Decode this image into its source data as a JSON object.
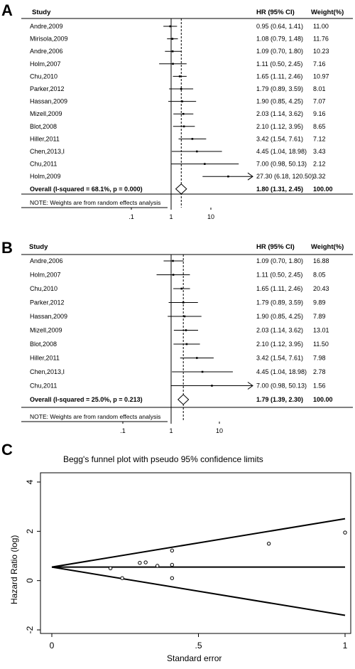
{
  "chart_data": [
    {
      "type": "forest",
      "panel_label": "A",
      "headers": {
        "study": "Study",
        "hr": "HR (95% CI)",
        "weight": "Weight(%)"
      },
      "rows": [
        {
          "study": "Andre,2009",
          "hr": 0.95,
          "lo": 0.64,
          "hi": 1.41,
          "hr_text": "0.95 (0.64, 1.41)",
          "weight": "11.00"
        },
        {
          "study": "Mirisola,2009",
          "hr": 1.08,
          "lo": 0.79,
          "hi": 1.48,
          "hr_text": "1.08 (0.79, 1.48)",
          "weight": "11.76"
        },
        {
          "study": "Andre,2006",
          "hr": 1.09,
          "lo": 0.7,
          "hi": 1.8,
          "hr_text": "1.09 (0.70, 1.80)",
          "weight": "10.23"
        },
        {
          "study": "Holm,2007",
          "hr": 1.11,
          "lo": 0.5,
          "hi": 2.45,
          "hr_text": "1.11 (0.50, 2.45)",
          "weight": "7.16"
        },
        {
          "study": "Chu,2010",
          "hr": 1.65,
          "lo": 1.11,
          "hi": 2.46,
          "hr_text": "1.65 (1.11, 2.46)",
          "weight": "10.97"
        },
        {
          "study": "Parker,2012",
          "hr": 1.79,
          "lo": 0.89,
          "hi": 3.59,
          "hr_text": "1.79 (0.89, 3.59)",
          "weight": "8.01"
        },
        {
          "study": "Hassan,2009",
          "hr": 1.9,
          "lo": 0.85,
          "hi": 4.25,
          "hr_text": "1.90 (0.85, 4.25)",
          "weight": "7.07"
        },
        {
          "study": "Mizell,2009",
          "hr": 2.03,
          "lo": 1.14,
          "hi": 3.62,
          "hr_text": "2.03 (1.14, 3.62)",
          "weight": "9.16"
        },
        {
          "study": "Blot,2008",
          "hr": 2.1,
          "lo": 1.12,
          "hi": 3.95,
          "hr_text": "2.10 (1.12, 3.95)",
          "weight": "8.65"
        },
        {
          "study": "Hiller,2011",
          "hr": 3.42,
          "lo": 1.54,
          "hi": 7.61,
          "hr_text": "3.42 (1.54, 7.61)",
          "weight": "7.12"
        },
        {
          "study": "Chen,2013,I",
          "hr": 4.45,
          "lo": 1.04,
          "hi": 18.98,
          "hr_text": "4.45 (1.04, 18.98)",
          "weight": "3.43"
        },
        {
          "study": "Chu,2011",
          "hr": 7.0,
          "lo": 0.98,
          "hi": 50.13,
          "hr_text": "7.00 (0.98, 50.13)",
          "weight": "2.12"
        },
        {
          "study": "Holm,2009",
          "hr": 27.3,
          "lo": 6.18,
          "hi": 120.5,
          "hr_text": "27.30 (6.18, 120.50)",
          "weight": "3.32",
          "arrow": true
        }
      ],
      "overall": {
        "label": "Overall  (I-squared = 68.1%, p = 0.000)",
        "hr": 1.8,
        "lo": 1.31,
        "hi": 2.45,
        "hr_text": "1.80 (1.31, 2.45)",
        "weight": "100.00"
      },
      "note": "NOTE: Weights are from random effects analysis",
      "x_ticks": [
        {
          "v": 0.1,
          "label": ".1"
        },
        {
          "v": 1,
          "label": "1"
        },
        {
          "v": 10,
          "label": "10"
        }
      ],
      "x_scale": "log"
    },
    {
      "type": "forest",
      "panel_label": "B",
      "headers": {
        "study": "Study",
        "hr": "HR (95% CI)",
        "weight": "Weight(%)"
      },
      "rows": [
        {
          "study": "Andre,2006",
          "hr": 1.09,
          "lo": 0.7,
          "hi": 1.8,
          "hr_text": "1.09 (0.70, 1.80)",
          "weight": "16.88"
        },
        {
          "study": "Holm,2007",
          "hr": 1.11,
          "lo": 0.5,
          "hi": 2.45,
          "hr_text": "1.11 (0.50, 2.45)",
          "weight": "8.05"
        },
        {
          "study": "Chu,2010",
          "hr": 1.65,
          "lo": 1.11,
          "hi": 2.46,
          "hr_text": "1.65 (1.11, 2.46)",
          "weight": "20.43"
        },
        {
          "study": "Parker,2012",
          "hr": 1.79,
          "lo": 0.89,
          "hi": 3.59,
          "hr_text": "1.79 (0.89, 3.59)",
          "weight": "9.89"
        },
        {
          "study": "Hassan,2009",
          "hr": 1.9,
          "lo": 0.85,
          "hi": 4.25,
          "hr_text": "1.90 (0.85, 4.25)",
          "weight": "7.89"
        },
        {
          "study": "Mizell,2009",
          "hr": 2.03,
          "lo": 1.14,
          "hi": 3.62,
          "hr_text": "2.03 (1.14, 3.62)",
          "weight": "13.01"
        },
        {
          "study": "Blot,2008",
          "hr": 2.1,
          "lo": 1.12,
          "hi": 3.95,
          "hr_text": "2.10 (1.12, 3.95)",
          "weight": "11.50"
        },
        {
          "study": "Hiller,2011",
          "hr": 3.42,
          "lo": 1.54,
          "hi": 7.61,
          "hr_text": "3.42 (1.54, 7.61)",
          "weight": "7.98"
        },
        {
          "study": "Chen,2013,I",
          "hr": 4.45,
          "lo": 1.04,
          "hi": 18.98,
          "hr_text": "4.45 (1.04, 18.98)",
          "weight": "2.78"
        },
        {
          "study": "Chu,2011",
          "hr": 7.0,
          "lo": 0.98,
          "hi": 50.13,
          "hr_text": "7.00 (0.98, 50.13)",
          "weight": "1.56",
          "arrow": true
        }
      ],
      "overall": {
        "label": "Overall  (I-squared = 25.0%, p = 0.213)",
        "hr": 1.79,
        "lo": 1.39,
        "hi": 2.3,
        "hr_text": "1.79 (1.39, 2.30)",
        "weight": "100.00"
      },
      "note": "NOTE: Weights are from random effects analysis",
      "x_ticks": [
        {
          "v": 0.1,
          "label": ".1"
        },
        {
          "v": 1,
          "label": "1"
        },
        {
          "v": 10,
          "label": "10"
        }
      ],
      "x_scale": "log"
    },
    {
      "type": "scatter",
      "panel_label": "C",
      "title": "Begg's funnel plot with pseudo 95% confidence limits",
      "xlabel": "Standard error",
      "ylabel": "Hazard Ratio (log)",
      "xlim": [
        0,
        1
      ],
      "ylim": [
        -2,
        4
      ],
      "x_ticks": [
        {
          "v": 0,
          "label": "0"
        },
        {
          "v": 0.5,
          "label": ".5"
        },
        {
          "v": 1,
          "label": "1"
        }
      ],
      "y_ticks": [
        {
          "v": -2,
          "label": "-2"
        },
        {
          "v": 0,
          "label": "0"
        },
        {
          "v": 2,
          "label": "2"
        },
        {
          "v": 4,
          "label": "4"
        }
      ],
      "pooled_log_hr": 0.55,
      "points": [
        {
          "x": 0.2,
          "y": 0.5
        },
        {
          "x": 0.24,
          "y": 0.1
        },
        {
          "x": 0.3,
          "y": 0.72
        },
        {
          "x": 0.32,
          "y": 0.74
        },
        {
          "x": 0.36,
          "y": 0.6
        },
        {
          "x": 0.41,
          "y": 0.1
        },
        {
          "x": 0.41,
          "y": 0.64
        },
        {
          "x": 0.41,
          "y": 1.22
        },
        {
          "x": 0.74,
          "y": 1.5
        },
        {
          "x": 1.0,
          "y": 1.95
        }
      ]
    }
  ]
}
